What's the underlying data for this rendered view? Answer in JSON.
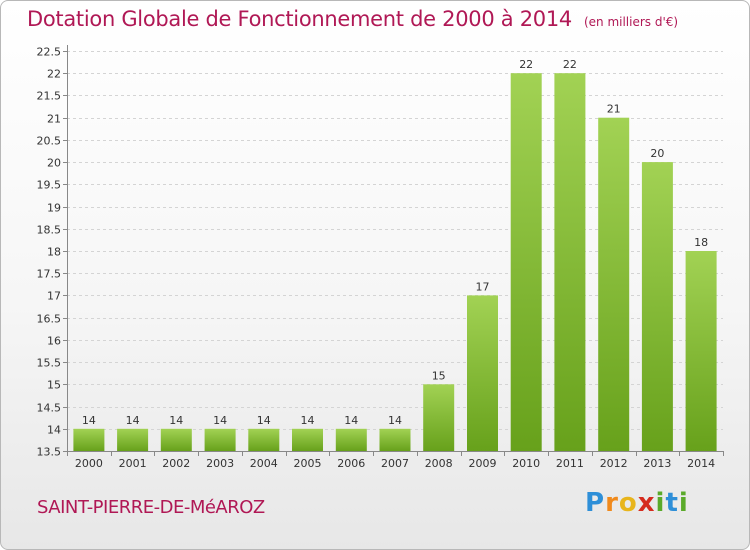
{
  "header": {
    "title": "Dotation Globale de Fonctionnement de 2000 à 2014",
    "unit": "(en milliers d'€)"
  },
  "footer": {
    "commune": "SAINT-PIERRE-DE-MéAROZ",
    "logo": {
      "text": "Proxiti",
      "letters": [
        "P",
        "r",
        "o",
        "x",
        "i",
        "t",
        "i"
      ],
      "colors": [
        "#2e8fd8",
        "#f08a1c",
        "#e8b51c",
        "#d52b1e",
        "#5aaa2a",
        "#2e8fd8",
        "#5aaa2a"
      ]
    }
  },
  "colors": {
    "accent": "#b01855",
    "bar_light": "#a2d254",
    "bar_dark": "#67a11b"
  },
  "chart_data": {
    "type": "bar",
    "categories": [
      "2000",
      "2001",
      "2002",
      "2003",
      "2004",
      "2005",
      "2006",
      "2007",
      "2008",
      "2009",
      "2010",
      "2011",
      "2012",
      "2013",
      "2014"
    ],
    "values": [
      14,
      14,
      14,
      14,
      14,
      14,
      14,
      14,
      15,
      17,
      22,
      22,
      21,
      20,
      18
    ],
    "data_labels": [
      "14",
      "14",
      "14",
      "14",
      "14",
      "14",
      "14",
      "14",
      "15",
      "17",
      "22",
      "22",
      "21",
      "20",
      "18"
    ],
    "ylim": [
      13.5,
      22.5
    ],
    "yticks": [
      "13.5",
      "14",
      "14.5",
      "15",
      "15.5",
      "16",
      "16.5",
      "17",
      "17.5",
      "18",
      "18.5",
      "19",
      "19.5",
      "20",
      "20.5",
      "21",
      "21.5",
      "22",
      "22.5"
    ],
    "grid": true,
    "legend": "none"
  }
}
